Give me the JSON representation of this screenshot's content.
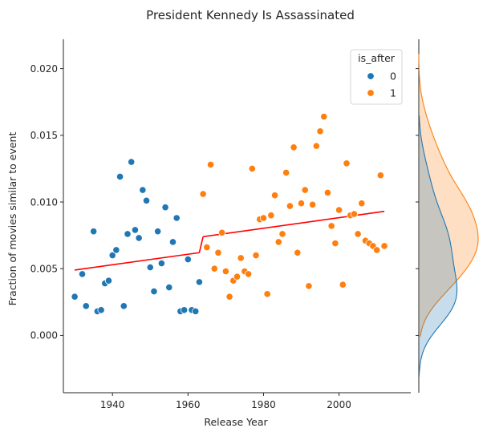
{
  "figure": {
    "title": "President Kennedy Is Assassinated"
  },
  "chart_data": {
    "type": "scatter",
    "title": "President Kennedy Is Assassinated",
    "xlabel": "Release Year",
    "ylabel": "Fraction of movies similar to event",
    "xlim": [
      1927,
      2019
    ],
    "ylim": [
      -0.0043,
      0.0222
    ],
    "xticks": [
      1940,
      1960,
      1980,
      2000
    ],
    "yticks": [
      0.0,
      0.005,
      0.01,
      0.015,
      0.02
    ],
    "ytick_labels": [
      "0.000",
      "0.005",
      "0.010",
      "0.015",
      "0.020"
    ],
    "grid": false,
    "legend": {
      "title": "is_after",
      "placement": "top-right",
      "entries": [
        "0",
        "1"
      ]
    },
    "colors": {
      "before": "#1f77b4",
      "after": "#ff7f0e",
      "fit_line": "#ff0000"
    },
    "series": [
      {
        "name": "0",
        "color": "#1f77b4",
        "points": [
          [
            1930,
            0.0029
          ],
          [
            1932,
            0.0046
          ],
          [
            1933,
            0.0022
          ],
          [
            1935,
            0.0078
          ],
          [
            1936,
            0.0018
          ],
          [
            1937,
            0.0019
          ],
          [
            1938,
            0.0039
          ],
          [
            1939,
            0.0041
          ],
          [
            1940,
            0.006
          ],
          [
            1941,
            0.0064
          ],
          [
            1942,
            0.0119
          ],
          [
            1943,
            0.0022
          ],
          [
            1944,
            0.0076
          ],
          [
            1945,
            0.013
          ],
          [
            1946,
            0.0079
          ],
          [
            1947,
            0.0073
          ],
          [
            1948,
            0.0109
          ],
          [
            1949,
            0.0101
          ],
          [
            1950,
            0.0051
          ],
          [
            1951,
            0.0033
          ],
          [
            1952,
            0.0078
          ],
          [
            1953,
            0.0054
          ],
          [
            1954,
            0.0096
          ],
          [
            1955,
            0.0036
          ],
          [
            1956,
            0.007
          ],
          [
            1957,
            0.0088
          ],
          [
            1958,
            0.0018
          ],
          [
            1959,
            0.0019
          ],
          [
            1960,
            0.0057
          ],
          [
            1961,
            0.0019
          ],
          [
            1962,
            0.0018
          ],
          [
            1963,
            0.004
          ]
        ]
      },
      {
        "name": "1",
        "color": "#ff7f0e",
        "points": [
          [
            1964,
            0.0106
          ],
          [
            1965,
            0.0066
          ],
          [
            1966,
            0.0128
          ],
          [
            1967,
            0.005
          ],
          [
            1968,
            0.0062
          ],
          [
            1969,
            0.0077
          ],
          [
            1970,
            0.0048
          ],
          [
            1971,
            0.0029
          ],
          [
            1972,
            0.0041
          ],
          [
            1973,
            0.0044
          ],
          [
            1974,
            0.0058
          ],
          [
            1975,
            0.0048
          ],
          [
            1976,
            0.0046
          ],
          [
            1977,
            0.0125
          ],
          [
            1978,
            0.006
          ],
          [
            1979,
            0.0087
          ],
          [
            1980,
            0.0088
          ],
          [
            1981,
            0.0031
          ],
          [
            1982,
            0.009
          ],
          [
            1983,
            0.0105
          ],
          [
            1984,
            0.007
          ],
          [
            1985,
            0.0076
          ],
          [
            1986,
            0.0122
          ],
          [
            1987,
            0.0097
          ],
          [
            1988,
            0.0141
          ],
          [
            1989,
            0.0062
          ],
          [
            1990,
            0.0099
          ],
          [
            1991,
            0.0109
          ],
          [
            1992,
            0.0037
          ],
          [
            1993,
            0.0098
          ],
          [
            1994,
            0.0142
          ],
          [
            1995,
            0.0153
          ],
          [
            1996,
            0.0164
          ],
          [
            1997,
            0.0107
          ],
          [
            1998,
            0.0082
          ],
          [
            1999,
            0.0069
          ],
          [
            2000,
            0.0094
          ],
          [
            2001,
            0.0038
          ],
          [
            2002,
            0.0129
          ],
          [
            2003,
            0.009
          ],
          [
            2004,
            0.0091
          ],
          [
            2005,
            0.0076
          ],
          [
            2006,
            0.0099
          ],
          [
            2007,
            0.0071
          ],
          [
            2008,
            0.0069
          ],
          [
            2009,
            0.0067
          ],
          [
            2010,
            0.0064
          ],
          [
            2011,
            0.012
          ],
          [
            2012,
            0.0067
          ]
        ]
      }
    ],
    "fit_lines": [
      {
        "x": [
          1930,
          1963
        ],
        "y": [
          0.0049,
          0.0062
        ]
      },
      {
        "x": [
          1963,
          1964
        ],
        "y": [
          0.0062,
          0.0074
        ]
      },
      {
        "x": [
          1964,
          2012
        ],
        "y": [
          0.0074,
          0.0093
        ]
      }
    ],
    "marginal_kde": {
      "orientation": "vertical",
      "series": [
        {
          "name": "0",
          "color": "#1f77b4",
          "range": [
            -0.0031,
            0.0165
          ],
          "peak_at": 0.0031
        },
        {
          "name": "1",
          "color": "#ff7f0e",
          "range": [
            -0.0001,
            0.0211
          ],
          "peak_at": 0.0074
        }
      ]
    }
  }
}
